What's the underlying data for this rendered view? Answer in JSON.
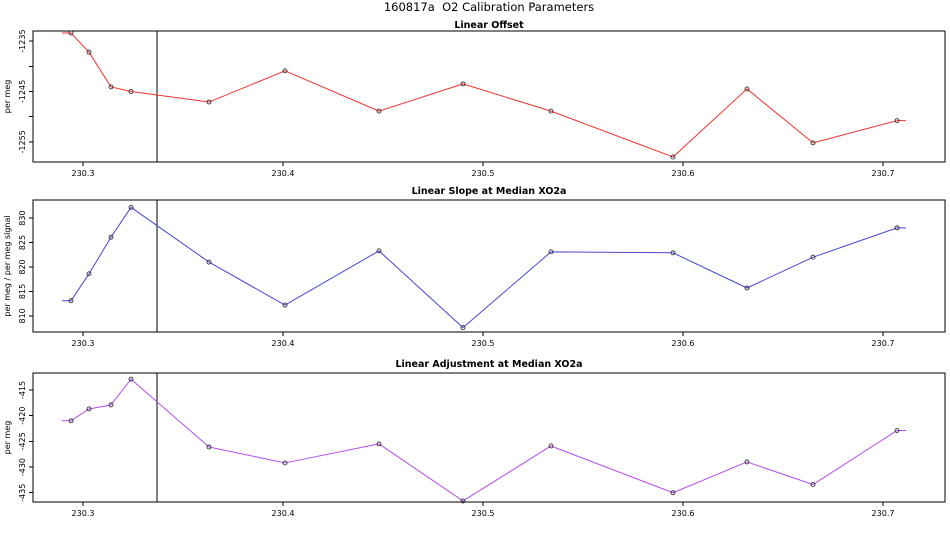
{
  "title": "160817a  O2 Calibration Parameters",
  "x_axis": {
    "xlim": [
      230.275,
      230.731
    ],
    "ticks": [
      230.3,
      230.4,
      230.5,
      230.6,
      230.7
    ],
    "labels": [
      "230.3",
      "230.4",
      "230.5",
      "230.6",
      "230.7"
    ]
  },
  "vline_x": 230.337,
  "marker": {
    "shape": "open-circle",
    "color": "#303030"
  },
  "chart_data": [
    {
      "type": "line",
      "title": "Linear Offset",
      "ylabel": "per meg",
      "color": "#f03232",
      "x": [
        230.294,
        230.303,
        230.314,
        230.324,
        230.363,
        230.401,
        230.448,
        230.49,
        230.534,
        230.595,
        230.632,
        230.665,
        230.707
      ],
      "y": [
        -1233.4,
        -1237.2,
        -1244.1,
        -1245.0,
        -1247.1,
        -1240.9,
        -1248.9,
        -1243.5,
        -1248.9,
        -1258.0,
        -1244.5,
        -1255.2,
        -1250.8
      ],
      "ylim": [
        -1259.0,
        -1233.0
      ],
      "yticks": [
        -1255,
        -1250,
        -1245,
        -1240,
        -1235
      ],
      "ytick_labels": [
        "-1255",
        "",
        "-1245",
        "",
        "-1235"
      ],
      "legend": "none",
      "grid": "off"
    },
    {
      "type": "line",
      "title": "Linear Slope at Median XO2a",
      "ylabel": "per meg / per meg signal",
      "color": "#4646d8",
      "x": [
        230.294,
        230.303,
        230.314,
        230.324,
        230.363,
        230.401,
        230.448,
        230.49,
        230.534,
        230.595,
        230.632,
        230.665,
        230.707
      ],
      "y": [
        813.1,
        818.6,
        826.1,
        832.2,
        821.0,
        812.2,
        823.3,
        807.6,
        823.1,
        822.9,
        815.7,
        822.0,
        828.0
      ],
      "ylim": [
        806.7,
        833.7
      ],
      "yticks": [
        810,
        815,
        820,
        825,
        830
      ],
      "ytick_labels": [
        "810",
        "815",
        "820",
        "825",
        "830"
      ],
      "legend": "none",
      "grid": "off"
    },
    {
      "type": "line",
      "title": "Linear Adjustment at Median XO2a",
      "ylabel": "per meg",
      "color": "#b44fe8",
      "x": [
        230.294,
        230.303,
        230.314,
        230.324,
        230.363,
        230.401,
        230.448,
        230.49,
        230.534,
        230.595,
        230.632,
        230.665,
        230.707
      ],
      "y": [
        -421.0,
        -418.7,
        -417.9,
        -412.9,
        -426.1,
        -429.2,
        -425.5,
        -436.6,
        -425.9,
        -435.0,
        -429.0,
        -433.4,
        -422.9
      ],
      "ylim": [
        -436.8,
        -411.7
      ],
      "yticks": [
        -435,
        -430,
        -425,
        -420,
        -415
      ],
      "ytick_labels": [
        "-435",
        "-430",
        "-425",
        "-420",
        "-415"
      ],
      "legend": "none",
      "grid": "off"
    }
  ]
}
